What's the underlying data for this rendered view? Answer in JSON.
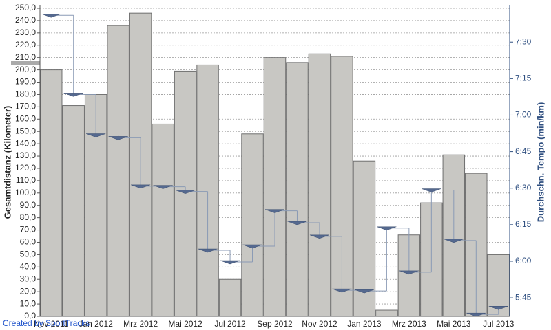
{
  "chart_data": {
    "type": "bar",
    "credit": "Created by SportTracks",
    "ylabel": "Gesamtdistanz (Kilometer)",
    "y2label": "Durchschn. Tempo (min/km)",
    "categories": [
      "Nov 2011",
      null,
      "Jan 2012",
      null,
      "Mrz 2012",
      null,
      "Mai 2012",
      null,
      "Jul 2012",
      null,
      "Sep 2012",
      null,
      "Nov 2012",
      null,
      "Jan 2013",
      null,
      "Mrz 2013",
      null,
      "Mai 2013",
      null,
      "Jul 2013"
    ],
    "series": [
      {
        "name": "Gesamtdistanz",
        "color": "#c8c7c3",
        "values": [
          200,
          171,
          180,
          236,
          246,
          156,
          199,
          204,
          30,
          148,
          210,
          206,
          213,
          211,
          126,
          5,
          66,
          92,
          131,
          116,
          50
        ]
      },
      {
        "name": "Durchschn. Tempo",
        "color": "#55698f",
        "axis": "y2",
        "values": [
          461.0,
          428.5,
          411.8,
          410.7,
          390.8,
          390.6,
          388.6,
          364.5,
          359.7,
          366.2,
          380.7,
          375.8,
          370.2,
          348.1,
          347.8,
          373.6,
          355.5,
          389.2,
          368.5,
          338.2,
          341.0
        ]
      }
    ],
    "ylim": [
      0,
      250
    ],
    "yticks": [
      {
        "value": 0,
        "label": "0,0"
      },
      {
        "value": 10,
        "label": "10,0"
      },
      {
        "value": 20,
        "label": "20,0"
      },
      {
        "value": 30,
        "label": "30,0"
      },
      {
        "value": 40,
        "label": "40,0"
      },
      {
        "value": 50,
        "label": "50,0"
      },
      {
        "value": 60,
        "label": "60,0"
      },
      {
        "value": 70,
        "label": "70,0"
      },
      {
        "value": 80,
        "label": "80,0"
      },
      {
        "value": 90,
        "label": "90,0"
      },
      {
        "value": 100,
        "label": "100,0"
      },
      {
        "value": 110,
        "label": "110,0"
      },
      {
        "value": 120,
        "label": "120,0"
      },
      {
        "value": 130,
        "label": "130,0"
      },
      {
        "value": 140,
        "label": "140,0"
      },
      {
        "value": 150,
        "label": "150,0"
      },
      {
        "value": 160,
        "label": "160,0"
      },
      {
        "value": 170,
        "label": "170,0"
      },
      {
        "value": 180,
        "label": "180,0"
      },
      {
        "value": 190,
        "label": "190,0"
      },
      {
        "value": 200,
        "label": "200,0"
      },
      {
        "value": 210,
        "label": "210,0"
      },
      {
        "value": 220,
        "label": "220,0"
      },
      {
        "value": 230,
        "label": "230,0"
      },
      {
        "value": 240,
        "label": "240,0"
      },
      {
        "value": 250,
        "label": "250,0"
      }
    ],
    "y2lim": [
      337.4,
      463.9
    ],
    "y2ticks": [
      {
        "value": 345,
        "label": "5:45"
      },
      {
        "value": 360,
        "label": "6:00"
      },
      {
        "value": 375,
        "label": "6:15"
      },
      {
        "value": 390,
        "label": "6:30"
      },
      {
        "value": 405,
        "label": "6:45"
      },
      {
        "value": 420,
        "label": "7:00"
      },
      {
        "value": 435,
        "label": "7:15"
      },
      {
        "value": 450,
        "label": "7:30"
      }
    ],
    "grid": true
  }
}
